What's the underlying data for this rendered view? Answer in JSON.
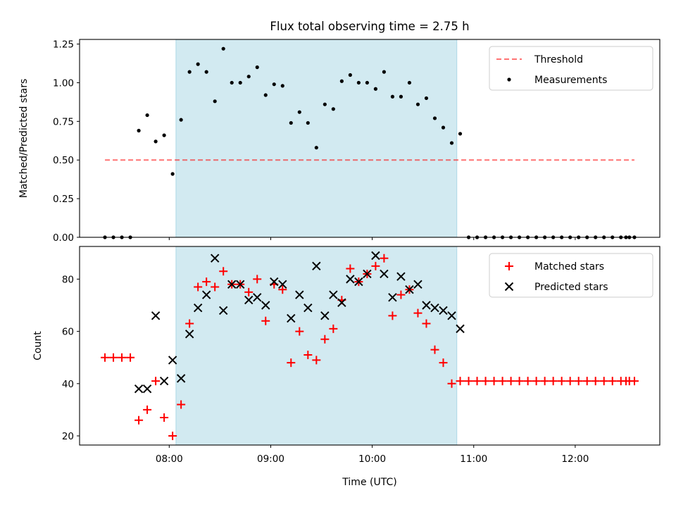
{
  "title": "Flux total observing time = 2.75 h",
  "colors": {
    "shade": "#add8e6",
    "threshold": "#ff0000",
    "measurements": "#000000",
    "matched": "#ff0000",
    "predicted": "#000000"
  },
  "chart_data": [
    {
      "type": "scatter",
      "ylabel": "Matched/Predicted stars",
      "xlim": [
        "07:07",
        "12:50"
      ],
      "ylim": [
        0,
        1.28
      ],
      "yticks": [
        "0.00",
        "0.25",
        "0.50",
        "0.75",
        "1.00",
        "1.25"
      ],
      "shaded_span": [
        "08:04",
        "10:50"
      ],
      "legend_position": "top-right",
      "legend": [
        "Threshold",
        "Measurements"
      ],
      "threshold": {
        "name": "Threshold",
        "value": 0.5,
        "x_range": [
          "07:22",
          "12:35"
        ]
      },
      "series": [
        {
          "name": "Measurements",
          "points": [
            [
              "07:22",
              0.0
            ],
            [
              "07:27",
              0.0
            ],
            [
              "07:32",
              0.0
            ],
            [
              "07:37",
              0.0
            ],
            [
              "07:42",
              0.69
            ],
            [
              "07:47",
              0.79
            ],
            [
              "07:52",
              0.62
            ],
            [
              "07:57",
              0.66
            ],
            [
              "08:02",
              0.41
            ],
            [
              "08:07",
              0.76
            ],
            [
              "08:12",
              1.07
            ],
            [
              "08:17",
              1.12
            ],
            [
              "08:22",
              1.07
            ],
            [
              "08:27",
              0.88
            ],
            [
              "08:32",
              1.22
            ],
            [
              "08:37",
              1.0
            ],
            [
              "08:42",
              1.0
            ],
            [
              "08:47",
              1.04
            ],
            [
              "08:52",
              1.1
            ],
            [
              "08:57",
              0.92
            ],
            [
              "09:02",
              0.99
            ],
            [
              "09:07",
              0.98
            ],
            [
              "09:12",
              0.74
            ],
            [
              "09:17",
              0.81
            ],
            [
              "09:22",
              0.74
            ],
            [
              "09:27",
              0.58
            ],
            [
              "09:32",
              0.86
            ],
            [
              "09:37",
              0.83
            ],
            [
              "09:42",
              1.01
            ],
            [
              "09:47",
              1.05
            ],
            [
              "09:52",
              1.0
            ],
            [
              "09:57",
              1.0
            ],
            [
              "10:02",
              0.96
            ],
            [
              "10:07",
              1.07
            ],
            [
              "10:12",
              0.91
            ],
            [
              "10:17",
              0.91
            ],
            [
              "10:22",
              1.0
            ],
            [
              "10:27",
              0.86
            ],
            [
              "10:32",
              0.9
            ],
            [
              "10:37",
              0.77
            ],
            [
              "10:42",
              0.71
            ],
            [
              "10:47",
              0.61
            ],
            [
              "10:52",
              0.67
            ],
            [
              "10:57",
              0.0
            ],
            [
              "11:02",
              0.0
            ],
            [
              "11:07",
              0.0
            ],
            [
              "11:12",
              0.0
            ],
            [
              "11:17",
              0.0
            ],
            [
              "11:22",
              0.0
            ],
            [
              "11:27",
              0.0
            ],
            [
              "11:32",
              0.0
            ],
            [
              "11:37",
              0.0
            ],
            [
              "11:42",
              0.0
            ],
            [
              "11:47",
              0.0
            ],
            [
              "11:52",
              0.0
            ],
            [
              "11:57",
              0.0
            ],
            [
              "12:02",
              0.0
            ],
            [
              "12:07",
              0.0
            ],
            [
              "12:12",
              0.0
            ],
            [
              "12:17",
              0.0
            ],
            [
              "12:22",
              0.0
            ],
            [
              "12:27",
              0.0
            ],
            [
              "12:30",
              0.0
            ],
            [
              "12:32",
              0.0
            ],
            [
              "12:35",
              0.0
            ]
          ]
        }
      ]
    },
    {
      "type": "scatter",
      "ylabel": "Count",
      "xlabel": "Time (UTC)",
      "xlim": [
        "07:07",
        "12:50"
      ],
      "ylim": [
        16.5,
        92.5
      ],
      "yticks": [
        "20",
        "40",
        "60",
        "80"
      ],
      "xticks": [
        "08:00",
        "09:00",
        "10:00",
        "11:00",
        "12:00"
      ],
      "shaded_span": [
        "08:04",
        "10:50"
      ],
      "legend_position": "top-right",
      "legend": [
        "Matched stars",
        "Predicted stars"
      ],
      "series": [
        {
          "name": "Matched stars",
          "marker": "+",
          "points": [
            [
              "07:22",
              50
            ],
            [
              "07:27",
              50
            ],
            [
              "07:32",
              50
            ],
            [
              "07:37",
              50
            ],
            [
              "07:42",
              26
            ],
            [
              "07:47",
              30
            ],
            [
              "07:52",
              41
            ],
            [
              "07:57",
              27
            ],
            [
              "08:02",
              20
            ],
            [
              "08:07",
              32
            ],
            [
              "08:12",
              63
            ],
            [
              "08:17",
              77
            ],
            [
              "08:22",
              79
            ],
            [
              "08:27",
              77
            ],
            [
              "08:32",
              83
            ],
            [
              "08:37",
              78
            ],
            [
              "08:42",
              78
            ],
            [
              "08:47",
              75
            ],
            [
              "08:52",
              80
            ],
            [
              "08:57",
              64
            ],
            [
              "09:02",
              78
            ],
            [
              "09:07",
              76
            ],
            [
              "09:12",
              48
            ],
            [
              "09:17",
              60
            ],
            [
              "09:22",
              51
            ],
            [
              "09:27",
              49
            ],
            [
              "09:32",
              57
            ],
            [
              "09:37",
              61
            ],
            [
              "09:42",
              72
            ],
            [
              "09:47",
              84
            ],
            [
              "09:52",
              79
            ],
            [
              "09:57",
              82
            ],
            [
              "10:02",
              85
            ],
            [
              "10:07",
              88
            ],
            [
              "10:12",
              66
            ],
            [
              "10:17",
              74
            ],
            [
              "10:22",
              76
            ],
            [
              "10:27",
              67
            ],
            [
              "10:32",
              63
            ],
            [
              "10:37",
              53
            ],
            [
              "10:42",
              48
            ],
            [
              "10:47",
              40
            ],
            [
              "10:52",
              41
            ],
            [
              "10:57",
              41
            ],
            [
              "11:02",
              41
            ],
            [
              "11:07",
              41
            ],
            [
              "11:12",
              41
            ],
            [
              "11:17",
              41
            ],
            [
              "11:22",
              41
            ],
            [
              "11:27",
              41
            ],
            [
              "11:32",
              41
            ],
            [
              "11:37",
              41
            ],
            [
              "11:42",
              41
            ],
            [
              "11:47",
              41
            ],
            [
              "11:52",
              41
            ],
            [
              "11:57",
              41
            ],
            [
              "12:02",
              41
            ],
            [
              "12:07",
              41
            ],
            [
              "12:12",
              41
            ],
            [
              "12:17",
              41
            ],
            [
              "12:22",
              41
            ],
            [
              "12:27",
              41
            ],
            [
              "12:30",
              41
            ],
            [
              "12:32",
              41
            ],
            [
              "12:35",
              41
            ]
          ]
        },
        {
          "name": "Predicted stars",
          "marker": "x",
          "points": [
            [
              "07:42",
              38
            ],
            [
              "07:47",
              38
            ],
            [
              "07:52",
              66
            ],
            [
              "07:57",
              41
            ],
            [
              "08:02",
              49
            ],
            [
              "08:07",
              42
            ],
            [
              "08:12",
              59
            ],
            [
              "08:17",
              69
            ],
            [
              "08:22",
              74
            ],
            [
              "08:27",
              88
            ],
            [
              "08:32",
              68
            ],
            [
              "08:37",
              78
            ],
            [
              "08:42",
              78
            ],
            [
              "08:47",
              72
            ],
            [
              "08:52",
              73
            ],
            [
              "08:57",
              70
            ],
            [
              "09:02",
              79
            ],
            [
              "09:07",
              78
            ],
            [
              "09:12",
              65
            ],
            [
              "09:17",
              74
            ],
            [
              "09:22",
              69
            ],
            [
              "09:27",
              85
            ],
            [
              "09:32",
              66
            ],
            [
              "09:37",
              74
            ],
            [
              "09:42",
              71
            ],
            [
              "09:47",
              80
            ],
            [
              "09:52",
              79
            ],
            [
              "09:57",
              82
            ],
            [
              "10:02",
              89
            ],
            [
              "10:07",
              82
            ],
            [
              "10:12",
              73
            ],
            [
              "10:17",
              81
            ],
            [
              "10:22",
              76
            ],
            [
              "10:27",
              78
            ],
            [
              "10:32",
              70
            ],
            [
              "10:37",
              69
            ],
            [
              "10:42",
              68
            ],
            [
              "10:47",
              66
            ],
            [
              "10:52",
              61
            ]
          ]
        }
      ]
    }
  ]
}
